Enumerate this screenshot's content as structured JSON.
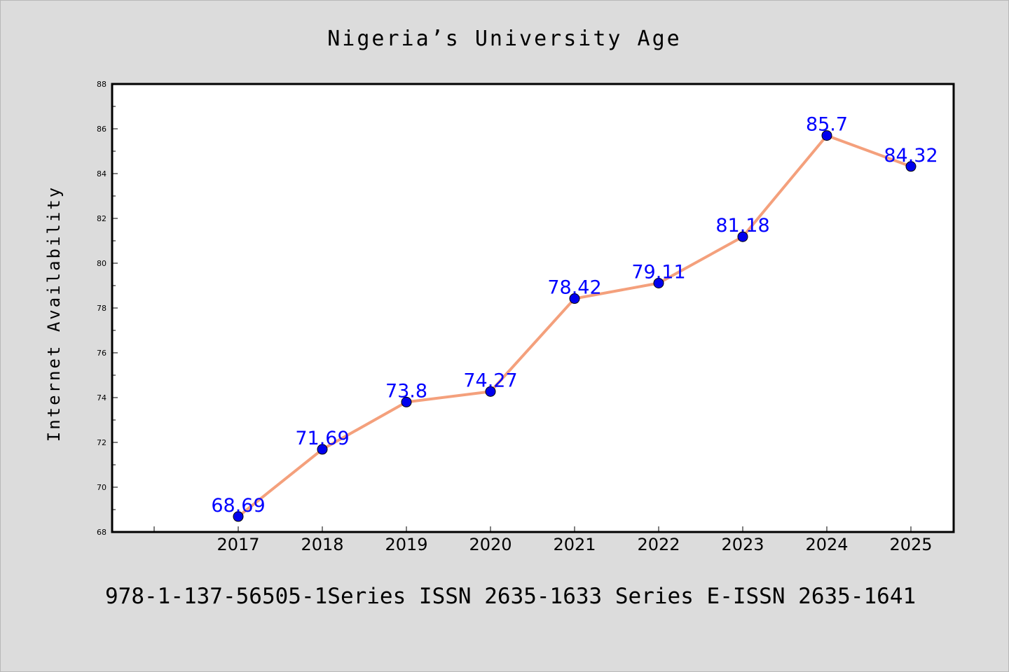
{
  "colors": {
    "background": "#dcdcdc",
    "plot_background": "#ffffff",
    "line": "#f4a07c",
    "marker": "#0000ee",
    "data_label": "#0000ff"
  },
  "chart_data": {
    "type": "line",
    "title": "Nigeria’s University Age",
    "xlabel": "",
    "ylabel": "Internet Availability",
    "categories": [
      "2017",
      "2018",
      "2019",
      "2020",
      "2021",
      "2022",
      "2023",
      "2024",
      "2025"
    ],
    "series": [
      {
        "values": [
          68.69,
          71.69,
          73.8,
          74.27,
          78.42,
          79.11,
          81.18,
          85.7,
          84.32
        ],
        "labels": [
          "68.69",
          "71.69",
          "73.8",
          "74.27",
          "78.42",
          "79.11",
          "81.18",
          "85.7",
          "84.32"
        ]
      }
    ],
    "ylim": [
      68,
      88
    ],
    "yticks": [
      68,
      70,
      72,
      74,
      76,
      78,
      80,
      82,
      84,
      86,
      88
    ],
    "grid": false,
    "legend": "none"
  },
  "footer": "978-1-137-56505-1Series ISSN 2635-1633 Series E-ISSN 2635-1641"
}
